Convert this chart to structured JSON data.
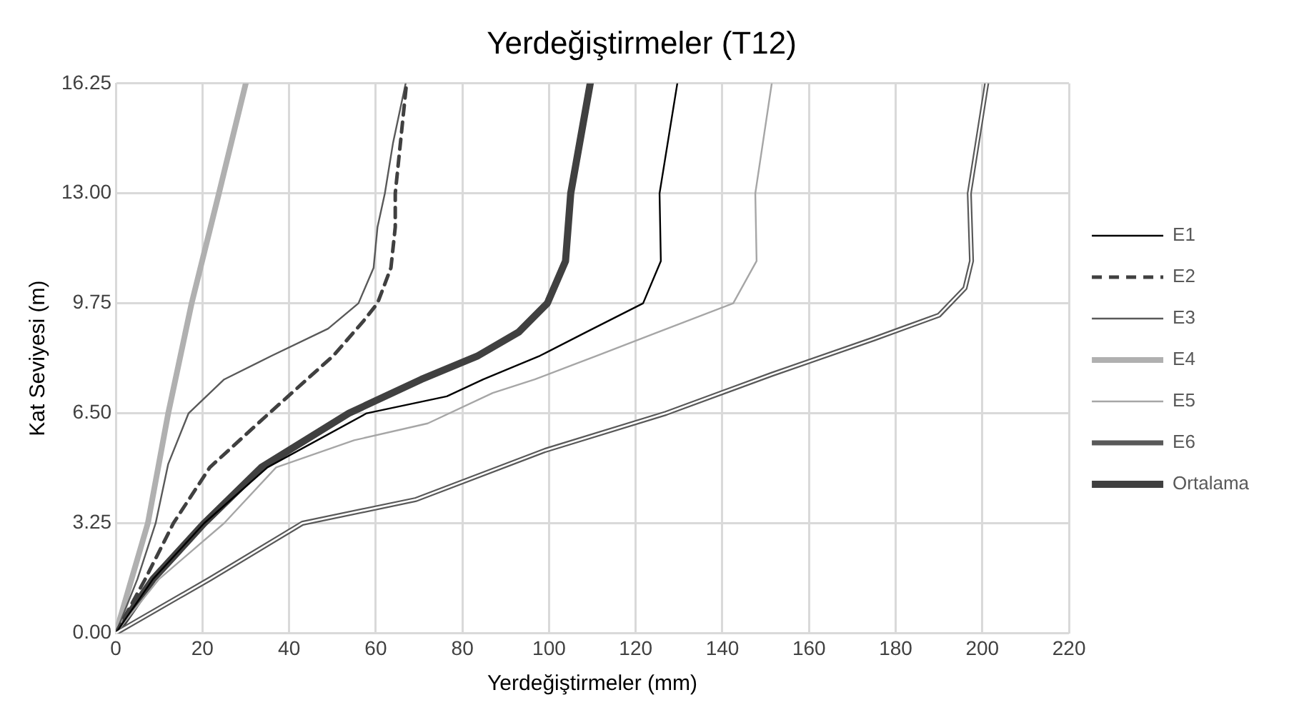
{
  "chart_data": {
    "type": "line",
    "title": "Yerdeğiştirmeler (T12)",
    "xlabel": "Yerdeğiştirmeler (mm)",
    "ylabel": "Kat Seviyesi (m)",
    "xlim": [
      0,
      220
    ],
    "xticks": [
      0,
      20,
      40,
      60,
      80,
      100,
      120,
      140,
      160,
      180,
      200,
      220
    ],
    "ylim": [
      0,
      16.25
    ],
    "yticks": [
      {
        "value": 0,
        "label": "0.00"
      },
      {
        "value": 3.25,
        "label": "3.25"
      },
      {
        "value": 6.5,
        "label": "6.50"
      },
      {
        "value": 9.75,
        "label": "9.75"
      },
      {
        "value": 13,
        "label": "13.00"
      },
      {
        "value": 16.25,
        "label": "16.25"
      }
    ],
    "grid": true,
    "legend": "right",
    "marker": "none",
    "series": [
      {
        "name": "E1",
        "color": "#000000",
        "line_style": "solid",
        "x": [
          0,
          8.6,
          20.4,
          35,
          57.9,
          76.4,
          84.8,
          97.9,
          108.6,
          121.7,
          125.8,
          125.5,
          129.6
        ],
        "values": [
          0,
          1.6,
          3.25,
          4.9,
          6.5,
          7.0,
          7.5,
          8.2,
          8.9,
          9.75,
          11,
          13,
          16.25
        ]
      },
      {
        "name": "E2",
        "color": "#404040",
        "line_style": "dashed",
        "x": [
          0,
          6.8,
          13.3,
          21.7,
          35.4,
          50.2,
          57,
          60.4,
          63.5,
          64.5,
          64.5,
          67.1
        ],
        "values": [
          0,
          1.6,
          3.25,
          4.9,
          6.5,
          8.2,
          9.2,
          9.75,
          10.8,
          12,
          13,
          16.25
        ]
      },
      {
        "name": "E3",
        "color": "#595959",
        "line_style": "solid",
        "x": [
          0,
          5,
          9.2,
          12.1,
          16.8,
          25,
          36,
          49,
          56,
          59.5,
          60.4,
          62.1,
          64,
          66.9
        ],
        "values": [
          0,
          1.6,
          3.25,
          5,
          6.5,
          7.5,
          8.2,
          9,
          9.75,
          10.8,
          12,
          13,
          14.5,
          16.25
        ]
      },
      {
        "name": "E4",
        "color": "#b0b0b0",
        "line_style": "solid",
        "x": [
          0,
          7.4,
          12.1,
          17.5,
          23.8,
          30
        ],
        "values": [
          0,
          3.25,
          6.5,
          9.75,
          13,
          16.25
        ]
      },
      {
        "name": "E5",
        "color": "#a6a6a6",
        "line_style": "solid",
        "x": [
          0,
          10,
          25,
          37,
          55,
          72,
          87,
          96.7,
          111,
          125.2,
          142.5,
          147.9,
          147.6,
          151.4
        ],
        "values": [
          0,
          1.6,
          3.25,
          4.9,
          5.7,
          6.2,
          7.1,
          7.5,
          8.2,
          8.9,
          9.75,
          11,
          13,
          16.25
        ]
      },
      {
        "name": "E6",
        "color": "#595959",
        "line_style": "solid",
        "x": [
          0,
          21.7,
          43.1,
          69.3,
          99,
          127,
          151.4,
          175,
          190,
          196,
          197.5,
          197,
          201
        ],
        "values": [
          0,
          1.6,
          3.25,
          3.95,
          5.4,
          6.5,
          7.65,
          8.7,
          9.4,
          10.2,
          11,
          13,
          16.25
        ]
      },
      {
        "name": "Ortalama",
        "color": "#404040",
        "line_style": "solid",
        "x": [
          0,
          8.6,
          20.4,
          33.6,
          53.8,
          70.5,
          83.6,
          93,
          99.6,
          103.8,
          105,
          109.5
        ],
        "values": [
          0,
          1.6,
          3.25,
          4.9,
          6.5,
          7.5,
          8.2,
          8.9,
          9.75,
          11,
          13,
          16.25
        ]
      }
    ]
  }
}
